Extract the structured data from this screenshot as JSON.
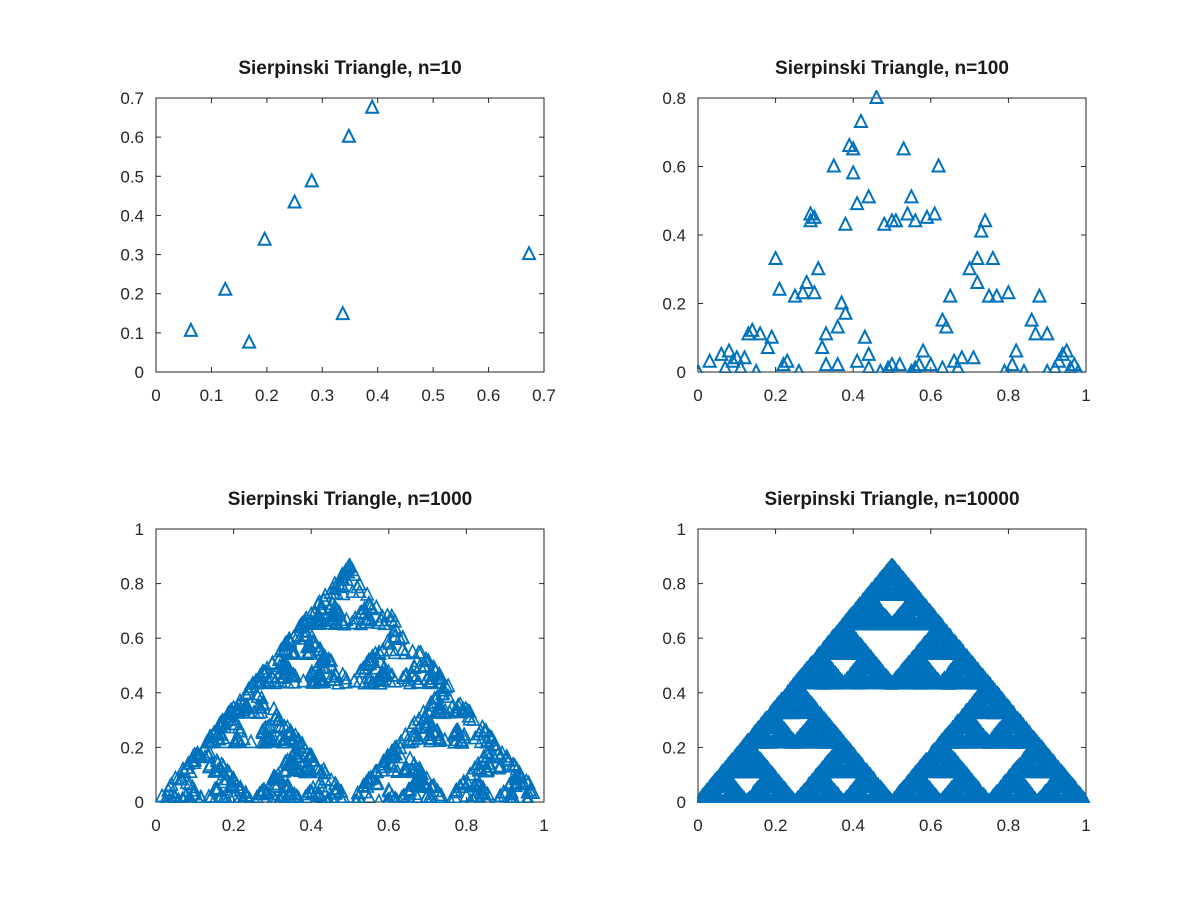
{
  "chart_data": [
    {
      "type": "scatter",
      "title": "Sierpinski Triangle, n=10",
      "xlabel": "",
      "ylabel": "",
      "xlim": [
        0,
        0.7
      ],
      "ylim": [
        0,
        0.7
      ],
      "xticks": [
        "0",
        "0.1",
        "0.2",
        "0.3",
        "0.4",
        "0.5",
        "0.6",
        "0.7"
      ],
      "yticks": [
        "0",
        "0.1",
        "0.2",
        "0.3",
        "0.4",
        "0.5",
        "0.6",
        "0.7"
      ],
      "marker": "triangle-up-open",
      "color": "#0072BD",
      "grid": false,
      "n": 10,
      "points": [
        [
          0.063,
          0.105
        ],
        [
          0.125,
          0.21
        ],
        [
          0.168,
          0.075
        ],
        [
          0.196,
          0.338
        ],
        [
          0.25,
          0.433
        ],
        [
          0.281,
          0.487
        ],
        [
          0.337,
          0.148
        ],
        [
          0.348,
          0.601
        ],
        [
          0.39,
          0.675
        ],
        [
          0.673,
          0.301
        ]
      ]
    },
    {
      "type": "scatter",
      "title": "Sierpinski Triangle, n=100",
      "xlabel": "",
      "ylabel": "",
      "xlim": [
        0,
        1
      ],
      "ylim": [
        0,
        0.8
      ],
      "xticks": [
        "0",
        "0.2",
        "0.4",
        "0.6",
        "0.8",
        "1"
      ],
      "yticks": [
        "0",
        "0.2",
        "0.4",
        "0.6",
        "0.8"
      ],
      "marker": "triangle-up-open",
      "color": "#0072BD",
      "grid": false,
      "n": 100,
      "points": [
        [
          0,
          0
        ],
        [
          0.03,
          0.03
        ],
        [
          0.06,
          0.05
        ],
        [
          0.07,
          0.01
        ],
        [
          0.08,
          0.06
        ],
        [
          0.09,
          0.03
        ],
        [
          0.1,
          0.04
        ],
        [
          0.11,
          0.01
        ],
        [
          0.13,
          0.11
        ],
        [
          0.14,
          0.12
        ],
        [
          0.15,
          0
        ],
        [
          0.16,
          0.11
        ],
        [
          0.18,
          0.07
        ],
        [
          0.19,
          0.1
        ],
        [
          0.2,
          0.33
        ],
        [
          0.21,
          0.24
        ],
        [
          0.22,
          0.02
        ],
        [
          0.23,
          0.03
        ],
        [
          0.25,
          0.22
        ],
        [
          0.26,
          0
        ],
        [
          0.27,
          0.23
        ],
        [
          0.28,
          0.26
        ],
        [
          0.29,
          0.44
        ],
        [
          0.29,
          0.46
        ],
        [
          0.3,
          0.45
        ],
        [
          0.3,
          0.23
        ],
        [
          0.31,
          0.3
        ],
        [
          0.32,
          0.07
        ],
        [
          0.33,
          0.11
        ],
        [
          0.35,
          0.6
        ],
        [
          0.36,
          0.02
        ],
        [
          0.36,
          0.13
        ],
        [
          0.37,
          0.2
        ],
        [
          0.38,
          0.17
        ],
        [
          0.38,
          0.43
        ],
        [
          0.39,
          0.66
        ],
        [
          0.4,
          0.65
        ],
        [
          0.4,
          0.58
        ],
        [
          0.41,
          0.03
        ],
        [
          0.41,
          0.49
        ],
        [
          0.42,
          0.73
        ],
        [
          0.43,
          0.1
        ],
        [
          0.44,
          0.05
        ],
        [
          0.44,
          0.51
        ],
        [
          0.46,
          0.8
        ],
        [
          0.47,
          0
        ],
        [
          0.48,
          0.43
        ],
        [
          0.49,
          0.01
        ],
        [
          0.5,
          0.44
        ],
        [
          0.51,
          0.44
        ],
        [
          0.52,
          0.02
        ],
        [
          0.53,
          0.65
        ],
        [
          0.54,
          0.46
        ],
        [
          0.55,
          0.51
        ],
        [
          0.55,
          0
        ],
        [
          0.56,
          0.44
        ],
        [
          0.57,
          0.02
        ],
        [
          0.58,
          0.06
        ],
        [
          0.59,
          0.45
        ],
        [
          0.6,
          0.02
        ],
        [
          0.61,
          0.46
        ],
        [
          0.62,
          0.6
        ],
        [
          0.63,
          0.15
        ],
        [
          0.64,
          0.13
        ],
        [
          0.65,
          0.22
        ],
        [
          0.66,
          0.03
        ],
        [
          0.67,
          0.01
        ],
        [
          0.7,
          0.3
        ],
        [
          0.71,
          0.04
        ],
        [
          0.72,
          0.33
        ],
        [
          0.72,
          0.26
        ],
        [
          0.73,
          0.41
        ],
        [
          0.74,
          0.44
        ],
        [
          0.75,
          0.22
        ],
        [
          0.76,
          0.33
        ],
        [
          0.77,
          0.22
        ],
        [
          0.79,
          0
        ],
        [
          0.8,
          0.23
        ],
        [
          0.82,
          0.06
        ],
        [
          0.84,
          0
        ],
        [
          0.86,
          0.15
        ],
        [
          0.87,
          0.11
        ],
        [
          0.88,
          0.22
        ],
        [
          0.9,
          0
        ],
        [
          0.9,
          0.11
        ],
        [
          0.92,
          0.01
        ],
        [
          0.94,
          0.05
        ],
        [
          0.95,
          0.06
        ],
        [
          0.96,
          0.01
        ],
        [
          0.97,
          0.02
        ],
        [
          0.98,
          0
        ],
        [
          0.5,
          0.02
        ],
        [
          0.63,
          0.01
        ],
        [
          0.44,
          0.01
        ],
        [
          0.68,
          0.04
        ],
        [
          0.33,
          0.02
        ],
        [
          0.81,
          0.02
        ],
        [
          0.12,
          0.04
        ],
        [
          0.93,
          0.03
        ],
        [
          0.56,
          0.01
        ]
      ]
    },
    {
      "type": "scatter",
      "title": "Sierpinski Triangle, n=1000",
      "xlabel": "",
      "ylabel": "",
      "xlim": [
        0,
        1
      ],
      "ylim": [
        0,
        1
      ],
      "xticks": [
        "0",
        "0.2",
        "0.4",
        "0.6",
        "0.8",
        "1"
      ],
      "yticks": [
        "0",
        "0.2",
        "0.4",
        "0.6",
        "0.8",
        "1"
      ],
      "marker": "triangle-up-open",
      "color": "#0072BD",
      "grid": false,
      "n": 1000,
      "generator": {
        "method": "chaos-game",
        "vertices": [
          [
            0,
            0
          ],
          [
            1,
            0
          ],
          [
            0.5,
            0.866
          ]
        ],
        "seed": 7,
        "start": [
          0.35,
          0.2
        ]
      }
    },
    {
      "type": "scatter",
      "title": "Sierpinski Triangle, n=10000",
      "xlabel": "",
      "ylabel": "",
      "xlim": [
        0,
        1
      ],
      "ylim": [
        0,
        1
      ],
      "xticks": [
        "0",
        "0.2",
        "0.4",
        "0.6",
        "0.8",
        "1"
      ],
      "yticks": [
        "0",
        "0.2",
        "0.4",
        "0.6",
        "0.8",
        "1"
      ],
      "marker": "triangle-up-open",
      "color": "#0072BD",
      "grid": false,
      "n": 10000,
      "generator": {
        "method": "chaos-game",
        "vertices": [
          [
            0,
            0
          ],
          [
            1,
            0
          ],
          [
            0.5,
            0.866
          ]
        ],
        "seed": 11,
        "start": [
          0.35,
          0.2
        ]
      }
    }
  ]
}
